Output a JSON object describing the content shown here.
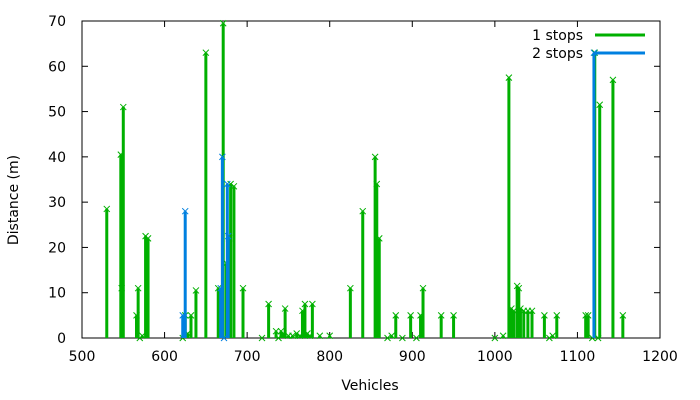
{
  "chart_data": {
    "type": "impulse",
    "title": "",
    "xlabel": "Vehicles",
    "ylabel": "Distance (m)",
    "xlim": [
      500,
      1200
    ],
    "ylim": [
      0,
      70
    ],
    "xticks": [
      500,
      600,
      700,
      800,
      900,
      1000,
      1100,
      1200
    ],
    "yticks": [
      0,
      10,
      20,
      30,
      40,
      50,
      60,
      70
    ],
    "legend_position": "top-right",
    "series": [
      {
        "name": "1 stops",
        "color": "#00b000",
        "marker": "x",
        "points": [
          [
            530,
            28.5
          ],
          [
            547,
            40.5
          ],
          [
            548,
            11.0
          ],
          [
            550,
            51.0
          ],
          [
            566,
            5.0
          ],
          [
            568,
            11.0
          ],
          [
            570,
            0.0
          ],
          [
            573,
            0.5
          ],
          [
            577,
            22.5
          ],
          [
            580,
            22.0
          ],
          [
            622,
            0.0
          ],
          [
            625,
            5.0
          ],
          [
            628,
            1.0
          ],
          [
            632,
            5.0
          ],
          [
            638,
            10.5
          ],
          [
            650,
            63.0
          ],
          [
            665,
            11.0
          ],
          [
            671,
            69.5
          ],
          [
            675,
            16.5
          ],
          [
            678,
            22.0
          ],
          [
            680,
            34.0
          ],
          [
            684,
            33.5
          ],
          [
            695,
            11.0
          ],
          [
            718,
            0.0
          ],
          [
            726,
            7.5
          ],
          [
            735,
            1.5
          ],
          [
            738,
            0.0
          ],
          [
            741,
            1.5
          ],
          [
            744,
            1.0
          ],
          [
            746,
            6.5
          ],
          [
            750,
            0.5
          ],
          [
            755,
            0.5
          ],
          [
            760,
            1.0
          ],
          [
            764,
            0.5
          ],
          [
            767,
            6.0
          ],
          [
            770,
            7.5
          ],
          [
            773,
            1.0
          ],
          [
            776,
            0.5
          ],
          [
            779,
            7.5
          ],
          [
            788,
            0.5
          ],
          [
            800,
            0.5
          ],
          [
            825,
            11.0
          ],
          [
            840,
            28.0
          ],
          [
            855,
            40.0
          ],
          [
            857,
            34.0
          ],
          [
            860,
            22.0
          ],
          [
            870,
            0.0
          ],
          [
            875,
            0.5
          ],
          [
            880,
            5.0
          ],
          [
            888,
            0.0
          ],
          [
            898,
            5.0
          ],
          [
            905,
            0.0
          ],
          [
            910,
            5.0
          ],
          [
            913,
            11.0
          ],
          [
            935,
            5.0
          ],
          [
            950,
            5.0
          ],
          [
            1000,
            0.0
          ],
          [
            1010,
            0.5
          ],
          [
            1017,
            57.5
          ],
          [
            1020,
            6.5
          ],
          [
            1023,
            6.0
          ],
          [
            1027,
            11.5
          ],
          [
            1029,
            11.0
          ],
          [
            1031,
            6.5
          ],
          [
            1035,
            6.0
          ],
          [
            1040,
            6.0
          ],
          [
            1045,
            6.0
          ],
          [
            1060,
            5.0
          ],
          [
            1066,
            0.0
          ],
          [
            1070,
            0.5
          ],
          [
            1075,
            5.0
          ],
          [
            1110,
            5.0
          ],
          [
            1113,
            5.0
          ],
          [
            1118,
            0.0
          ],
          [
            1121,
            63.0
          ],
          [
            1125,
            0.0
          ],
          [
            1127,
            51.5
          ],
          [
            1143,
            57.0
          ],
          [
            1155,
            5.0
          ]
        ]
      },
      {
        "name": "2 stops",
        "color": "#0080e0",
        "marker": "x",
        "points": [
          [
            622,
            5.0
          ],
          [
            625,
            28.0
          ],
          [
            668,
            11.0
          ],
          [
            670,
            40.0
          ],
          [
            672,
            0.0
          ],
          [
            676,
            34.0
          ],
          [
            677,
            22.5
          ],
          [
            1120,
            63.0
          ]
        ]
      }
    ]
  }
}
